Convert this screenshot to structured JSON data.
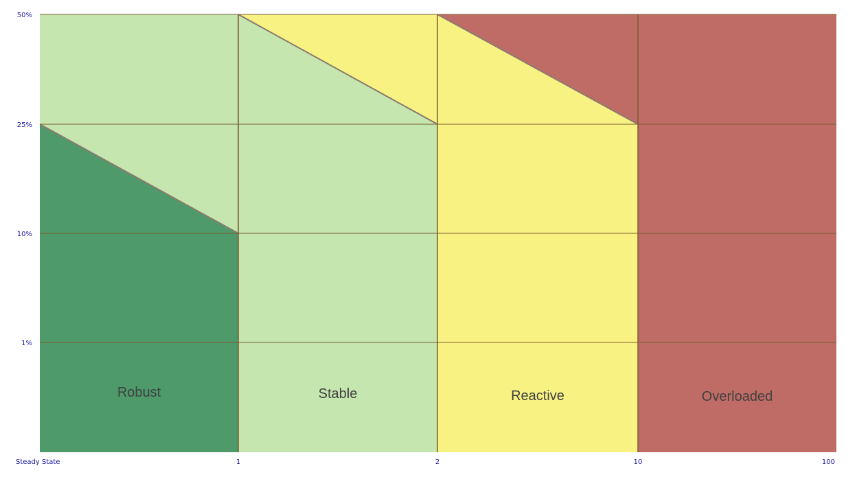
{
  "chart_data": {
    "type": "heatmap",
    "title": "",
    "xlabel": "",
    "ylabel": "",
    "grid": true,
    "x_ticks": [
      "Steady State",
      "1",
      "2",
      "10",
      "100"
    ],
    "y_ticks": [
      "50%",
      "25%",
      "10%",
      "1%"
    ],
    "zones": [
      {
        "name": "Robust",
        "color": "#4f9a6a"
      },
      {
        "name": "Stable",
        "color": "#c5e6ae"
      },
      {
        "name": "Reactive",
        "color": "#f8f283"
      },
      {
        "name": "Overloaded",
        "color": "#c06c66"
      }
    ],
    "colors": {
      "grid": "#7a5c32",
      "axis_text": "#1a1aa6",
      "label_text": "#3f3f3f"
    }
  }
}
